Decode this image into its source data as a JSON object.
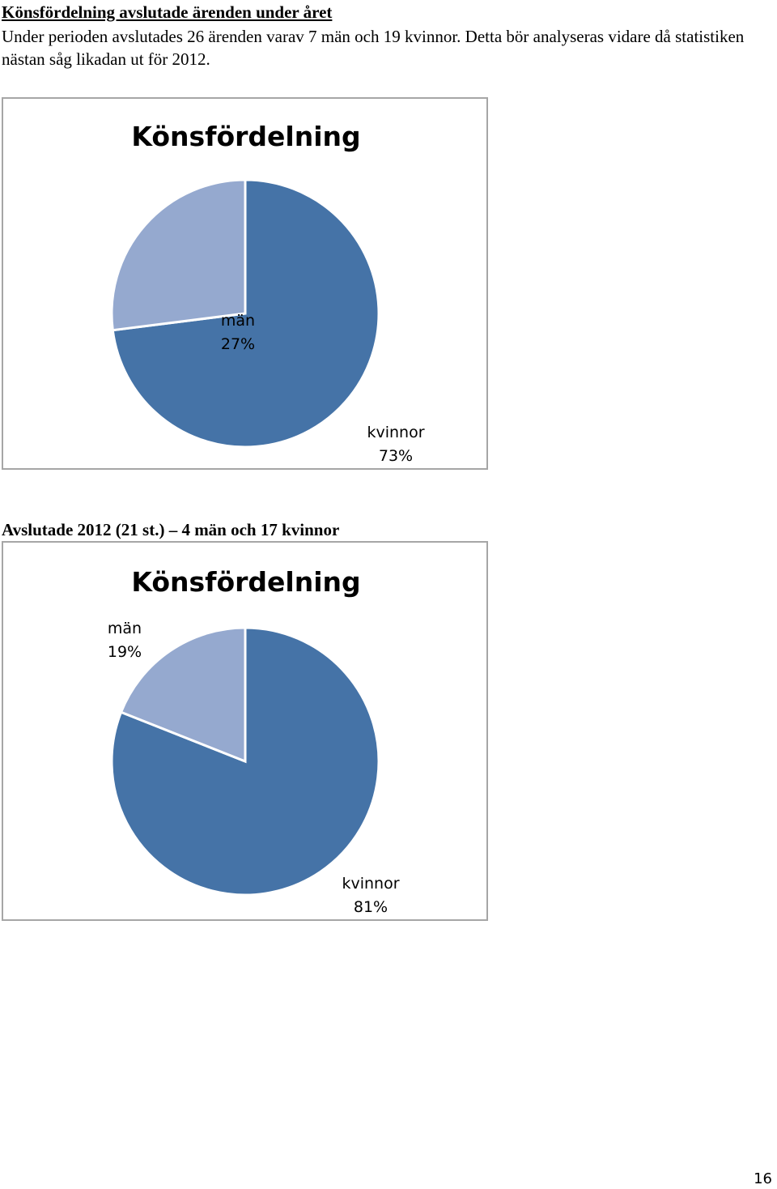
{
  "page": {
    "heading": "Könsfördelning avslutade ärenden under året",
    "paragraph": "Under perioden avslutades 26 ärenden varav 7 män och 19 kvinnor. Detta bör analyseras vidare då statistiken nästan såg likadan ut för 2012.",
    "subheading": "Avslutade 2012 (21 st.) – 4 män och 17 kvinnor",
    "page_number": "16"
  },
  "colors": {
    "men": "#95A9CF",
    "women": "#4573A7",
    "slice_border": "#ffffff",
    "frame": "#a6a6a6"
  },
  "chart_data": [
    {
      "type": "pie",
      "title": "Könsfördelning",
      "slices": [
        {
          "label": "män",
          "value": 27,
          "percent_label": "27%"
        },
        {
          "label": "kvinnor",
          "value": 73,
          "percent_label": "73%"
        }
      ]
    },
    {
      "type": "pie",
      "title": "Könsfördelning",
      "slices": [
        {
          "label": "män",
          "value": 19,
          "percent_label": "19%"
        },
        {
          "label": "kvinnor",
          "value": 81,
          "percent_label": "81%"
        }
      ]
    }
  ]
}
